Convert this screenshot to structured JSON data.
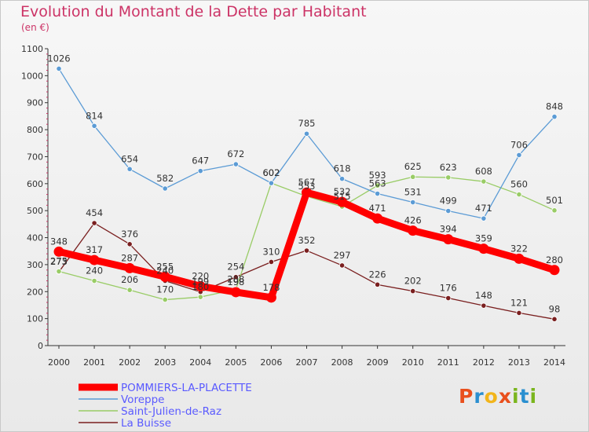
{
  "title": "Evolution du Montant de la Dette par Habitant",
  "subtitle": "(en €)",
  "logo": {
    "text": "Proxiti",
    "colors": [
      "#e94f1c",
      "#2a8fd0",
      "#f2b51b",
      "#7ab51d"
    ]
  },
  "chart_data": {
    "type": "line",
    "title": "Evolution du Montant de la Dette par Habitant",
    "subtitle": "(en €)",
    "xlabel": "",
    "ylabel": "",
    "x": [
      "2000",
      "2001",
      "2002",
      "2003",
      "2004",
      "2005",
      "2006",
      "2007",
      "2008",
      "2009",
      "2010",
      "2011",
      "2012",
      "2013",
      "2014"
    ],
    "ylim": [
      0,
      1100
    ],
    "yticks": [
      0,
      100,
      200,
      300,
      400,
      500,
      600,
      700,
      800,
      900,
      1000,
      1100
    ],
    "grid": false,
    "legend": "bottom-left",
    "series": [
      {
        "name": "La Buisse",
        "color": "#7a1f1f",
        "values": [
          273,
          454,
          376,
          240,
          199,
          254,
          310,
          352,
          297,
          226,
          202,
          176,
          148,
          121,
          98
        ],
        "labels": [
          "273",
          "454",
          "376",
          "240",
          "199",
          "254",
          "310",
          "352",
          "297",
          "226",
          "202",
          "176",
          "148",
          "121",
          "98"
        ]
      },
      {
        "name": "Saint-Julien-de-Raz",
        "color": "#99cc66",
        "values": [
          275,
          240,
          206,
          170,
          180,
          208,
          602,
          553,
          515,
          593,
          625,
          623,
          608,
          560,
          501
        ],
        "labels": [
          "275",
          "240",
          "206",
          "170",
          "180",
          "208",
          "602",
          "553",
          "515",
          "593",
          "625",
          "623",
          "608",
          "560",
          "501"
        ]
      },
      {
        "name": "Voreppe",
        "color": "#5b9bd5",
        "values": [
          1026,
          814,
          654,
          582,
          647,
          672,
          602,
          785,
          618,
          563,
          531,
          499,
          471,
          706,
          848
        ],
        "labels": [
          "1026",
          "814",
          "654",
          "582",
          "647",
          "672",
          "602",
          "785",
          "618",
          "563",
          "531",
          "499",
          "471",
          "706",
          "848"
        ]
      },
      {
        "name": "POMMIERS-LA-PLACETTE",
        "color": "#ff0000",
        "values": [
          348,
          317,
          287,
          255,
          220,
          198,
          178,
          567,
          532,
          471,
          426,
          394,
          359,
          322,
          280
        ],
        "labels": [
          "348",
          "317",
          "287",
          "255",
          "220",
          "198",
          "178",
          "567",
          "532",
          "471",
          "426",
          "394",
          "359",
          "322",
          "280"
        ]
      }
    ],
    "legend_order": [
      "POMMIERS-LA-PLACETTE",
      "Voreppe",
      "Saint-Julien-de-Raz",
      "La Buisse"
    ]
  }
}
